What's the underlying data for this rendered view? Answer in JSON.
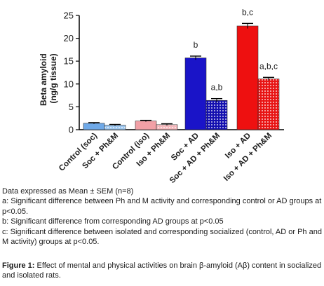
{
  "chart_data": {
    "type": "bar",
    "ylabel_line1": "Beta amyloid",
    "ylabel_line2": "(ng/g tissue)",
    "ylim": [
      0,
      25
    ],
    "yticks": [
      "0",
      "5",
      "10",
      "15",
      "20",
      "25"
    ],
    "grid": false,
    "categories": [
      "Control (soc)",
      "Soc + Ph&M",
      "Control (iso)",
      "Iso + Ph&M",
      "Soc + AD",
      "Soc + AD + Ph&M",
      "Iso + AD",
      "Iso + AD + Ph&M"
    ],
    "values": [
      1.4,
      1.0,
      1.9,
      1.1,
      15.7,
      6.4,
      22.7,
      11.1
    ],
    "errors": [
      0.15,
      0.15,
      0.15,
      0.2,
      0.4,
      0.4,
      0.55,
      0.35
    ],
    "annotations": [
      "",
      "",
      "",
      "",
      "b",
      "a,b",
      "b,c",
      "a,b,c"
    ],
    "colors": {
      "soc_solid": "#6fa9e8",
      "soc_pattern": "#9cc6ef",
      "iso_solid": "#f2a0a6",
      "iso_pattern": "#f4b8bc",
      "soc_ad_solid": "#1a14c8",
      "soc_ad_pattern": "#1410b0",
      "iso_ad_solid": "#ee1010",
      "iso_ad_pattern": "#e81414"
    }
  },
  "notes": {
    "line1": "Data expressed as Mean ± SEM (n=8)",
    "line2": "a: Significant difference between Ph and M activity and corresponding control or AD groups at p<0.05.",
    "line3": "b: Significant difference from corresponding AD groups at p<0.05",
    "line4": "c: Significant difference between isolated and corresponding socialized (control, AD or Ph and M activity) groups at p<0.05."
  },
  "caption": {
    "label": "Figure 1:",
    "text": " Effect of mental and physical activities on brain β-amyloid (Aβ) content in socialized and isolated rats."
  }
}
